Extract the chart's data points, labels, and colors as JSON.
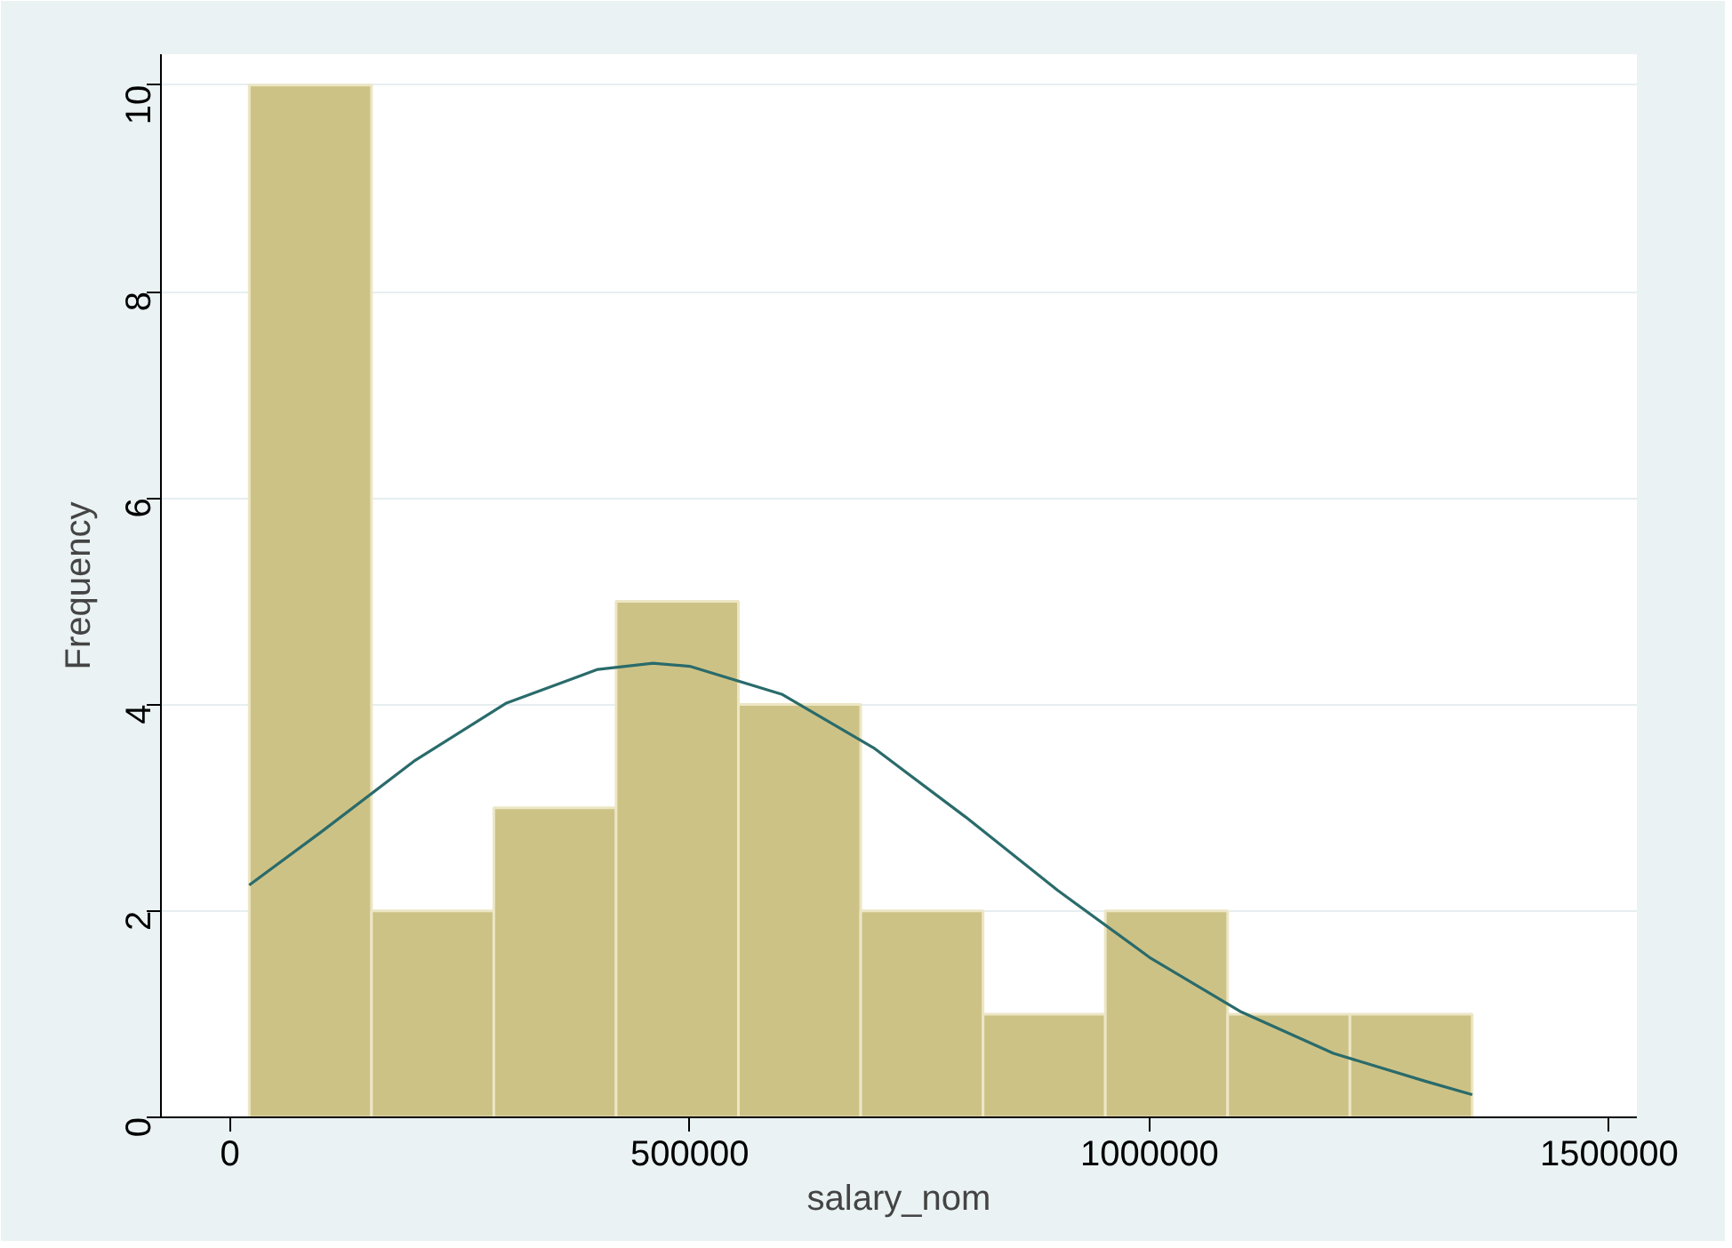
{
  "chart_data": {
    "type": "histogram",
    "xlabel": "salary_nom",
    "ylabel": "Frequency",
    "bins": [
      21000,
      154000,
      287000,
      420000,
      553000,
      686000,
      819000,
      952000,
      1085000,
      1218000,
      1351000
    ],
    "values": [
      10,
      2,
      3,
      5,
      4,
      2,
      1,
      2,
      1,
      1
    ],
    "color": "#cdc286",
    "series": [
      {
        "type": "line",
        "color": "#2a6b6b",
        "x": [
          21000,
          100000,
          200000,
          300000,
          400000,
          460000,
          500000,
          600000,
          700000,
          800000,
          900000,
          1000000,
          1100000,
          1200000,
          1300000,
          1351000
        ],
        "values": [
          2.25,
          2.77,
          3.45,
          4.01,
          4.34,
          4.4,
          4.37,
          4.1,
          3.58,
          2.91,
          2.2,
          1.55,
          1.02,
          0.62,
          0.35,
          0.22
        ]
      }
    ],
    "xlim": [
      -75000,
      1530000
    ],
    "ylim": [
      0,
      10.3
    ],
    "xticks": [
      0,
      500000,
      1000000,
      1500000
    ],
    "yticks": [
      0,
      2,
      4,
      6,
      8,
      10
    ],
    "grid": "y"
  }
}
